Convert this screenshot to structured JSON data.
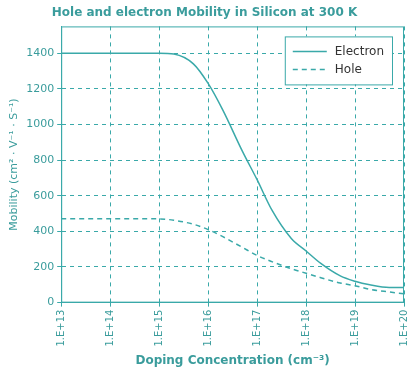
{
  "chart_data": {
    "type": "line",
    "title": "Hole and electron Mobility in Silicon at 300 K",
    "x_label": "Doping Concentration (cm⁻³)",
    "y_label": "Mobility (cm² · V⁻¹ · S⁻¹)",
    "log": "x",
    "x": [
      10000000000000.0,
      100000000000000.0,
      1000000000000000.0,
      2000000000000000.0,
      5000000000000000.0,
      1e+16,
      2e+16,
      5e+16,
      1e+17,
      2e+17,
      5e+17,
      1e+18,
      2e+18,
      5e+18,
      1e+19,
      2e+19,
      5e+19,
      1e+20
    ],
    "series": [
      {
        "name": "Electron",
        "color": "#3aa9a9",
        "line_style": "solid",
        "marker": "none",
        "values": [
          1400,
          1400,
          1400,
          1395,
          1340,
          1230,
          1080,
          850,
          690,
          520,
          360,
          290,
          220,
          150,
          120,
          100,
          85,
          85
        ]
      },
      {
        "name": "Hole",
        "color": "#3aa9a9",
        "line_style": "dashed",
        "marker": "none",
        "values": [
          470,
          470,
          470,
          462,
          440,
          410,
          370,
          310,
          265,
          230,
          190,
          165,
          140,
          110,
          95,
          75,
          60,
          50
        ]
      }
    ],
    "xlim": [
      10000000000000.0,
      1e+20
    ],
    "xticks": [
      {
        "value": 10000000000000.0,
        "label": "1.E+13"
      },
      {
        "value": 100000000000000.0,
        "label": "1.E+14"
      },
      {
        "value": 1000000000000000.0,
        "label": "1.E+15"
      },
      {
        "value": 1e+16,
        "label": "1.E+16"
      },
      {
        "value": 1e+17,
        "label": "1.E+17"
      },
      {
        "value": 1e+18,
        "label": "1.E+18"
      },
      {
        "value": 1e+19,
        "label": "1.E+19"
      },
      {
        "value": 1e+20,
        "label": "1.E+20"
      }
    ],
    "ylim": [
      0,
      1550
    ],
    "yticks": [
      0,
      200,
      400,
      600,
      800,
      1000,
      1200,
      1400
    ],
    "grid": true,
    "legend": "upper right"
  }
}
